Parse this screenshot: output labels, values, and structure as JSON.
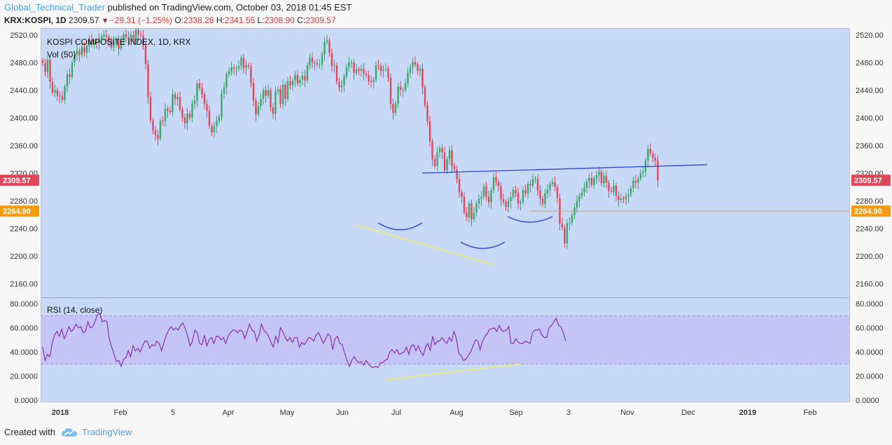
{
  "header": {
    "author": "Global_Technical_Trader",
    "published_text": "published on TradingView.com, October 03, 2018 01:45 EST"
  },
  "quote": {
    "symbol": "KRX:KOSPI, 1D",
    "last": "2309.57",
    "change": "−29.31 (−1.25%)",
    "o_label": "O:",
    "o": "2338.28",
    "h_label": "H:",
    "h": "2341.55",
    "l_label": "L:",
    "l": "2308.90",
    "c_label": "C:",
    "c": "2309.57"
  },
  "footer": {
    "created_with": "Created with",
    "brand": "TradingView"
  },
  "colors": {
    "pane_bg": "#c8d9f7",
    "rsi_band": "#c3c1f7",
    "up": "#3aa86b",
    "down": "#e0485a",
    "rsi_line": "#8e2db5",
    "trend_blue": "#2f45d8",
    "trend_yellow": "#f2ec6c",
    "support_orange": "#f39c12",
    "last_price_bg": "#e0485a"
  },
  "chart_data": [
    {
      "type": "candlestick",
      "title": "KOSPI COMPOSITE INDEX, 1D, KRX",
      "volume_label": "Vol (50)",
      "ylim": [
        2140,
        2530
      ],
      "y_ticks": [
        "2520.00",
        "2480.00",
        "2440.00",
        "2400.00",
        "2360.00",
        "2320.00",
        "2280.00",
        "2240.00",
        "2200.00",
        "2160.00"
      ],
      "x_ticks": [
        "2018",
        "Feb",
        "5",
        "Apr",
        "May",
        "Jun",
        "Jul",
        "Aug",
        "Sep",
        "3",
        "Nov",
        "Dec",
        "2019",
        "Feb"
      ],
      "x_ticks_bold": [
        "2018",
        "2019"
      ],
      "last_price_label": "2309.57",
      "support_label": "2264.90",
      "series": [
        {
          "values": [
            2479,
            2466,
            2484,
            2452,
            2436,
            2440,
            2432,
            2431,
            2426,
            2445,
            2463,
            2459,
            2480,
            2491,
            2497,
            2491,
            2502,
            2494,
            2504,
            2513,
            2506,
            2509,
            2508,
            2514,
            2518,
            2520,
            2517,
            2512,
            2502,
            2510,
            2513,
            2500,
            2511,
            2521,
            2517,
            2514,
            2520,
            2513,
            2527,
            2520,
            2519,
            2505,
            2478,
            2430,
            2396,
            2382,
            2375,
            2370,
            2396,
            2395,
            2413,
            2410,
            2408,
            2434,
            2427,
            2430,
            2412,
            2400,
            2392,
            2406,
            2400,
            2420,
            2425,
            2450,
            2443,
            2434,
            2420,
            2410,
            2388,
            2379,
            2388,
            2395,
            2401,
            2435,
            2444,
            2463,
            2467,
            2473,
            2471,
            2471,
            2475,
            2487,
            2472,
            2476,
            2474,
            2450,
            2425,
            2405,
            2417,
            2427,
            2440,
            2432,
            2440,
            2415,
            2406,
            2438,
            2441,
            2420,
            2448,
            2427,
            2453,
            2447,
            2454,
            2462,
            2450,
            2455,
            2461,
            2454,
            2476,
            2487,
            2480,
            2479,
            2477,
            2477,
            2492,
            2510,
            2512,
            2494,
            2475,
            2476,
            2452,
            2444,
            2447,
            2460,
            2473,
            2480,
            2480,
            2465,
            2470,
            2468,
            2471,
            2464,
            2462,
            2453,
            2452,
            2455,
            2476,
            2475,
            2468,
            2470,
            2471,
            2458,
            2420,
            2407,
            2420,
            2445,
            2440,
            2440,
            2450,
            2465,
            2473,
            2481,
            2477,
            2468,
            2471,
            2444,
            2418,
            2395,
            2366,
            2340,
            2330,
            2350,
            2356,
            2350,
            2324,
            2340,
            2353,
            2330,
            2325,
            2311,
            2292,
            2286,
            2263,
            2256,
            2276,
            2253,
            2263,
            2276,
            2283,
            2286,
            2301,
            2286,
            2278,
            2295,
            2314,
            2307,
            2301,
            2282,
            2278,
            2271,
            2279,
            2285,
            2296,
            2291,
            2276,
            2278,
            2295,
            2291,
            2304,
            2302,
            2311,
            2312,
            2295,
            2283,
            2275,
            2291,
            2296,
            2304,
            2307,
            2300,
            2284,
            2247,
            2241,
            2218,
            2247,
            2248,
            2259,
            2270,
            2280,
            2287,
            2292,
            2299,
            2308,
            2313,
            2303,
            2312,
            2317,
            2322,
            2305,
            2316,
            2306,
            2294,
            2293,
            2302,
            2287,
            2281,
            2283,
            2282,
            2286,
            2289,
            2298,
            2309,
            2306,
            2312,
            2320,
            2322,
            2338,
            2355,
            2348,
            2342,
            2338,
            2309.57
          ]
        }
      ]
    },
    {
      "type": "line",
      "title": "RSI (14, close)",
      "ylim": [
        0,
        80
      ],
      "y_ticks": [
        "80.0000",
        "60.0000",
        "40.0000",
        "20.0000",
        "0.0000"
      ],
      "band": [
        30,
        70
      ],
      "series": [
        {
          "values": [
            44,
            33,
            38,
            36,
            47,
            54,
            57,
            53,
            59,
            51,
            55,
            61,
            57,
            59,
            63,
            60,
            61,
            56,
            57,
            65,
            60,
            61,
            65,
            71,
            72,
            65,
            66,
            65,
            51,
            44,
            38,
            32,
            33,
            28,
            34,
            35,
            41,
            36,
            45,
            41,
            43,
            40,
            45,
            49,
            49,
            43,
            46,
            45,
            49,
            47,
            41,
            48,
            54,
            58,
            61,
            58,
            60,
            58,
            62,
            64,
            59,
            53,
            45,
            49,
            58,
            56,
            47,
            46,
            54,
            45,
            50,
            52,
            47,
            53,
            53,
            50,
            52,
            47,
            53,
            56,
            58,
            58,
            56,
            58,
            57,
            51,
            57,
            63,
            58,
            57,
            49,
            54,
            63,
            58,
            56,
            53,
            48,
            44,
            53,
            48,
            60,
            57,
            52,
            49,
            52,
            48,
            52,
            52,
            44,
            48,
            46,
            49,
            52,
            51,
            49,
            54,
            56,
            52,
            47,
            51,
            55,
            53,
            42,
            51,
            53,
            47,
            46,
            39,
            33,
            28,
            33,
            36,
            33,
            31,
            32,
            29,
            33,
            30,
            28,
            27,
            28,
            27,
            31,
            31,
            33,
            34,
            40,
            42,
            39,
            42,
            38,
            39,
            40,
            44,
            38,
            45,
            46,
            41,
            45,
            40,
            37,
            44,
            47,
            41,
            53,
            46,
            49,
            49,
            52,
            49,
            47,
            52,
            49,
            57,
            51,
            39,
            37,
            33,
            34,
            37,
            40,
            45,
            50,
            49,
            42,
            49,
            53,
            55,
            59,
            59,
            60,
            57,
            62,
            58,
            57,
            58,
            61,
            47,
            47,
            51,
            48,
            47,
            47,
            49,
            48,
            47,
            56,
            58,
            58,
            59,
            54,
            52,
            52,
            60,
            62,
            65,
            68,
            62,
            61,
            56,
            49
          ]
        }
      ]
    }
  ]
}
